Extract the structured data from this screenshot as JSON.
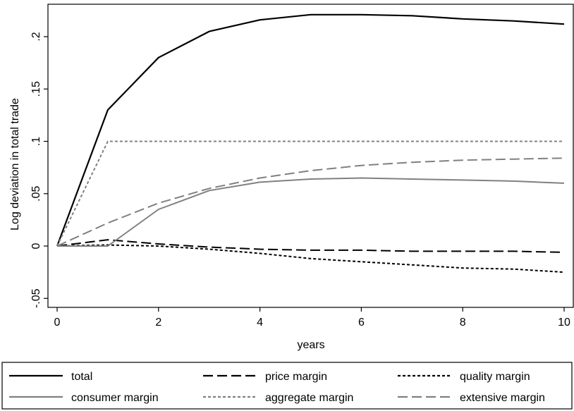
{
  "chart_data": {
    "type": "line",
    "title": "",
    "xlabel": "years",
    "ylabel": "Log deviation in total trade",
    "xlim": [
      0,
      10
    ],
    "ylim": [
      -0.05,
      0.23
    ],
    "xticks": [
      0,
      2,
      4,
      6,
      8,
      10
    ],
    "xtick_labels": [
      "0",
      "2",
      "4",
      "6",
      "8",
      "10"
    ],
    "yticks": [
      -0.05,
      0,
      0.05,
      0.1,
      0.15,
      0.2
    ],
    "ytick_labels": [
      "-.05",
      "0",
      ".05",
      ".1",
      ".15",
      ".2"
    ],
    "grid": false,
    "legend_position": "bottom",
    "x": [
      0,
      1,
      2,
      3,
      4,
      5,
      6,
      7,
      8,
      9,
      10
    ],
    "series": [
      {
        "name": "total",
        "color": "#000000",
        "dash": "solid",
        "values": [
          0,
          0.13,
          0.18,
          0.205,
          0.216,
          0.221,
          0.221,
          0.22,
          0.217,
          0.215,
          0.212
        ]
      },
      {
        "name": "price margin",
        "color": "#000000",
        "dash": "long",
        "values": [
          0,
          0.006,
          0.002,
          -0.001,
          -0.003,
          -0.004,
          -0.004,
          -0.005,
          -0.005,
          -0.005,
          -0.006
        ]
      },
      {
        "name": "quality margin",
        "color": "#000000",
        "dash": "short",
        "values": [
          0,
          0.001,
          0.0,
          -0.003,
          -0.007,
          -0.012,
          -0.015,
          -0.018,
          -0.021,
          -0.022,
          -0.025
        ]
      },
      {
        "name": "consumer margin",
        "color": "#808080",
        "dash": "solid",
        "values": [
          0,
          0.0,
          0.035,
          0.053,
          0.061,
          0.064,
          0.065,
          0.064,
          0.063,
          0.062,
          0.06
        ]
      },
      {
        "name": "aggregate margin",
        "color": "#808080",
        "dash": "short",
        "values": [
          0,
          0.1,
          0.1,
          0.1,
          0.1,
          0.1,
          0.1,
          0.1,
          0.1,
          0.1,
          0.1
        ]
      },
      {
        "name": "extensive margin",
        "color": "#808080",
        "dash": "long",
        "values": [
          0,
          0.022,
          0.041,
          0.055,
          0.065,
          0.072,
          0.077,
          0.08,
          0.082,
          0.083,
          0.084
        ]
      }
    ]
  }
}
